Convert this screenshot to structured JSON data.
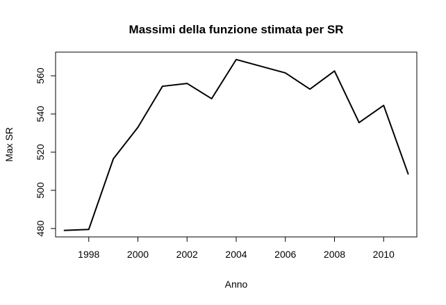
{
  "chart_data": {
    "type": "line",
    "title": "Massimi della funzione stimata per SR",
    "xlabel": "Anno",
    "ylabel": "Max SR",
    "xlim": [
      1996.65,
      2011.35
    ],
    "ylim": [
      475.6,
      572.4
    ],
    "x_ticks": [
      1998,
      2000,
      2002,
      2004,
      2006,
      2008,
      2010
    ],
    "y_ticks": [
      480,
      500,
      520,
      540,
      560
    ],
    "grid": false,
    "legend": "none",
    "series": [
      {
        "x": [
          1997,
          1998,
          1999,
          2000,
          2001,
          2002,
          2003,
          2004,
          2005,
          2006,
          2007,
          2008,
          2009,
          2010,
          2011
        ],
        "values": [
          479,
          479.5,
          516.5,
          533,
          554.5,
          556,
          548,
          568.5,
          565,
          561.5,
          553,
          562.5,
          535.5,
          544.5,
          508.5
        ]
      }
    ],
    "colors": {
      "line": "#000000",
      "axis": "#000000"
    }
  }
}
